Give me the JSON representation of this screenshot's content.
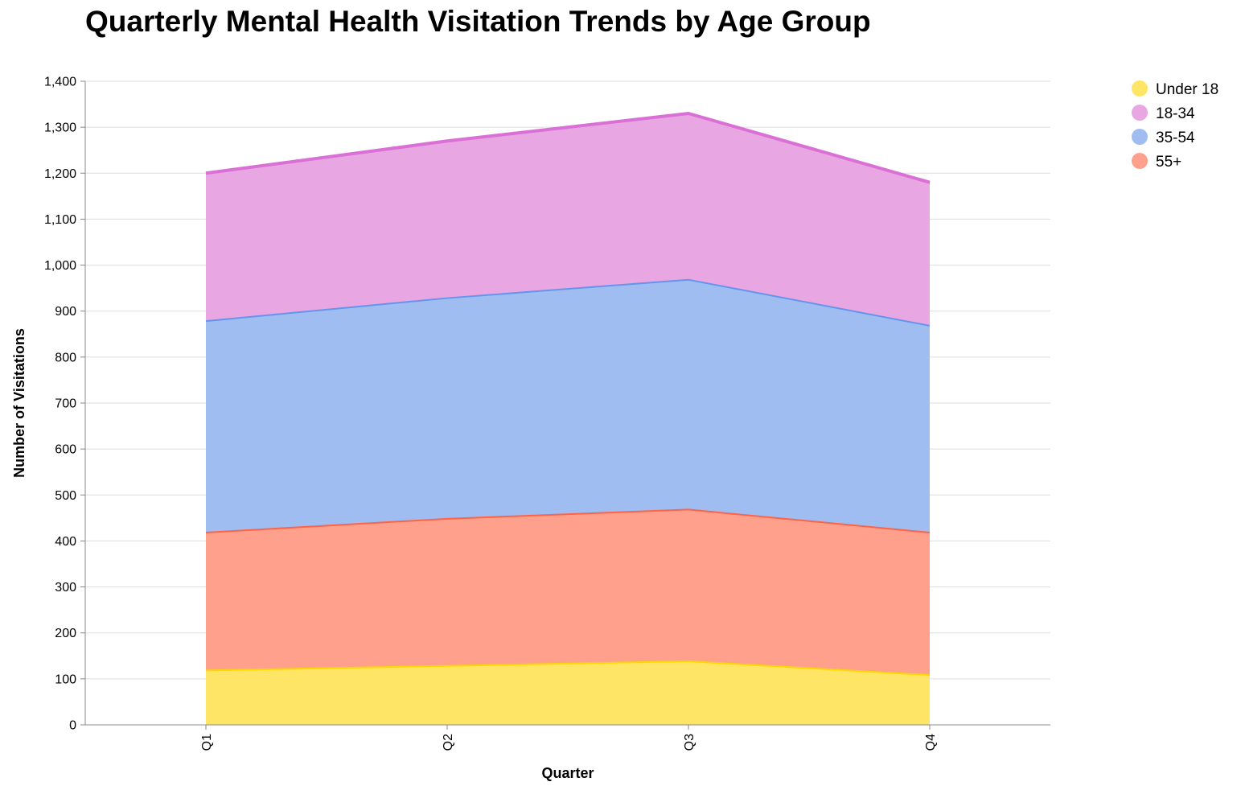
{
  "chart_data": {
    "type": "area",
    "stacked": true,
    "title": "Quarterly Mental Health Visitation Trends by Age Group",
    "xlabel": "Quarter",
    "ylabel": "Number of Visitations",
    "categories": [
      "Q1",
      "Q2",
      "Q3",
      "Q4"
    ],
    "ylim": [
      0,
      1400
    ],
    "yticks": [
      0,
      100,
      200,
      300,
      400,
      500,
      600,
      700,
      800,
      900,
      1000,
      1100,
      1200,
      1300,
      1400
    ],
    "ytick_labels": [
      "0",
      "100",
      "200",
      "300",
      "400",
      "500",
      "600",
      "700",
      "800",
      "900",
      "1,000",
      "1,100",
      "1,200",
      "1,300",
      "1,400"
    ],
    "grid": true,
    "legend_position": "top-right",
    "series": [
      {
        "name": "Under 18",
        "values": [
          120,
          130,
          140,
          110
        ],
        "fill": "#FFE566",
        "stroke": "#FFD700"
      },
      {
        "name": "55+",
        "values": [
          300,
          320,
          330,
          310
        ],
        "fill": "#FFA08C",
        "stroke": "#FF6347"
      },
      {
        "name": "35-54",
        "values": [
          460,
          480,
          500,
          450
        ],
        "fill": "#A0BDF2",
        "stroke": "#6495ED"
      },
      {
        "name": "18-34",
        "values": [
          320,
          340,
          360,
          310
        ],
        "fill": "#E8A6E3",
        "stroke": "#DA70D6"
      }
    ],
    "legend_order": [
      "Under 18",
      "18-34",
      "35-54",
      "55+"
    ]
  }
}
